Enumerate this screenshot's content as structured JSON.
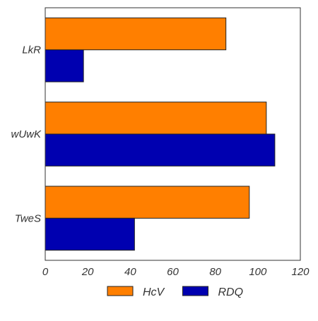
{
  "chart_data": {
    "type": "bar",
    "orientation": "horizontal",
    "categories": [
      "LkR",
      "wUwK",
      "TweS"
    ],
    "series": [
      {
        "name": "HcV",
        "values": [
          85,
          104,
          96
        ],
        "color": "#ff7f00"
      },
      {
        "name": "RDQ",
        "values": [
          18,
          108,
          42
        ],
        "color": "#0000b0"
      }
    ],
    "xlim": [
      0,
      120
    ],
    "xticks": [
      0,
      20,
      40,
      60,
      80,
      100,
      120
    ],
    "xlabel": "",
    "ylabel": "",
    "title": "",
    "grid": false,
    "legend_position": "bottom-center"
  }
}
